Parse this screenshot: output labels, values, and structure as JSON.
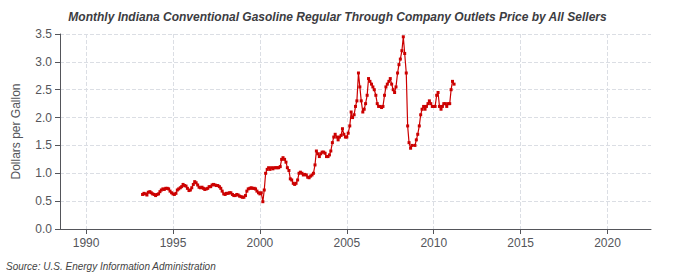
{
  "chart_data": {
    "type": "line",
    "title": "Monthly Indiana Conventional Gasoline Regular Through Company Outlets Price by All Sellers",
    "ylabel": "Dollars per Gallon",
    "source": "Source: U.S. Energy Information Administration",
    "color": "#cc0000",
    "marker": "square",
    "grid": true,
    "xlim": [
      1988.5,
      2022.5
    ],
    "xticks": [
      1990,
      1995,
      2000,
      2005,
      2010,
      2015,
      2020
    ],
    "ylim": [
      0,
      3.5
    ],
    "yticks": [
      {
        "value": 0,
        "label": "0.0"
      },
      0.5,
      {
        "value": 1,
        "label": "1.0"
      },
      1.5,
      {
        "value": 2,
        "label": "2.0"
      },
      2.5,
      {
        "value": 3,
        "label": "3.0"
      },
      3.5
    ],
    "x": [
      1993.25,
      1993.33,
      1993.42,
      1993.5,
      1993.58,
      1993.67,
      1993.75,
      1993.83,
      1993.92,
      1994.0,
      1994.08,
      1994.17,
      1994.25,
      1994.33,
      1994.42,
      1994.5,
      1994.58,
      1994.67,
      1994.75,
      1994.83,
      1994.92,
      1995.0,
      1995.08,
      1995.17,
      1995.25,
      1995.33,
      1995.42,
      1995.5,
      1995.58,
      1995.67,
      1995.75,
      1995.83,
      1995.92,
      1996.0,
      1996.08,
      1996.17,
      1996.25,
      1996.33,
      1996.42,
      1996.5,
      1996.58,
      1996.67,
      1996.75,
      1996.83,
      1996.92,
      1997.0,
      1997.08,
      1997.17,
      1997.25,
      1997.33,
      1997.42,
      1997.5,
      1997.58,
      1997.67,
      1997.75,
      1997.83,
      1997.92,
      1998.0,
      1998.08,
      1998.17,
      1998.25,
      1998.33,
      1998.42,
      1998.5,
      1998.58,
      1998.67,
      1998.75,
      1998.83,
      1998.92,
      1999.0,
      1999.08,
      1999.17,
      1999.25,
      1999.33,
      1999.42,
      1999.5,
      1999.58,
      1999.67,
      1999.75,
      1999.83,
      1999.92,
      2000.0,
      2000.08,
      2000.17,
      2000.25,
      2000.33,
      2000.42,
      2000.5,
      2000.58,
      2000.67,
      2000.75,
      2000.83,
      2000.92,
      2001.0,
      2001.08,
      2001.17,
      2001.25,
      2001.33,
      2001.42,
      2001.5,
      2001.58,
      2001.67,
      2001.75,
      2001.83,
      2001.92,
      2002.0,
      2002.08,
      2002.17,
      2002.25,
      2002.33,
      2002.42,
      2002.5,
      2002.58,
      2002.67,
      2002.75,
      2002.83,
      2002.92,
      2003.0,
      2003.08,
      2003.17,
      2003.25,
      2003.33,
      2003.42,
      2003.5,
      2003.58,
      2003.67,
      2003.75,
      2003.83,
      2003.92,
      2004.0,
      2004.08,
      2004.17,
      2004.25,
      2004.33,
      2004.42,
      2004.5,
      2004.58,
      2004.67,
      2004.75,
      2004.83,
      2004.92,
      2005.0,
      2005.08,
      2005.17,
      2005.25,
      2005.33,
      2005.42,
      2005.5,
      2005.58,
      2005.67,
      2005.75,
      2005.83,
      2005.92,
      2006.0,
      2006.08,
      2006.17,
      2006.25,
      2006.33,
      2006.42,
      2006.5,
      2006.58,
      2006.67,
      2006.75,
      2006.83,
      2006.92,
      2007.0,
      2007.08,
      2007.17,
      2007.25,
      2007.33,
      2007.42,
      2007.5,
      2007.58,
      2007.67,
      2007.75,
      2007.83,
      2007.92,
      2008.0,
      2008.08,
      2008.17,
      2008.25,
      2008.33,
      2008.42,
      2008.5,
      2008.58,
      2008.67,
      2008.75,
      2008.92,
      2009.0,
      2009.08,
      2009.17,
      2009.25,
      2009.33,
      2009.42,
      2009.5,
      2009.58,
      2009.67,
      2009.75,
      2009.83,
      2009.92,
      2010.0,
      2010.08,
      2010.17,
      2010.25,
      2010.33,
      2010.42,
      2010.5,
      2010.58,
      2010.67,
      2010.75,
      2010.83,
      2010.92,
      2011.0,
      2011.08,
      2011.17
    ],
    "values": [
      0.62,
      0.64,
      0.63,
      0.61,
      0.66,
      0.67,
      0.65,
      0.63,
      0.62,
      0.6,
      0.62,
      0.63,
      0.67,
      0.7,
      0.72,
      0.71,
      0.73,
      0.73,
      0.72,
      0.68,
      0.65,
      0.63,
      0.62,
      0.64,
      0.7,
      0.72,
      0.74,
      0.76,
      0.8,
      0.78,
      0.77,
      0.73,
      0.69,
      0.7,
      0.74,
      0.8,
      0.85,
      0.83,
      0.79,
      0.75,
      0.74,
      0.75,
      0.73,
      0.71,
      0.72,
      0.73,
      0.76,
      0.76,
      0.79,
      0.8,
      0.79,
      0.78,
      0.78,
      0.76,
      0.73,
      0.68,
      0.63,
      0.62,
      0.64,
      0.64,
      0.65,
      0.65,
      0.62,
      0.6,
      0.6,
      0.62,
      0.61,
      0.59,
      0.58,
      0.57,
      0.57,
      0.6,
      0.68,
      0.72,
      0.73,
      0.74,
      0.73,
      0.73,
      0.72,
      0.68,
      0.65,
      0.63,
      0.65,
      0.49,
      0.7,
      1.0,
      1.07,
      1.1,
      1.07,
      1.1,
      1.08,
      1.1,
      1.1,
      1.1,
      1.1,
      1.12,
      1.25,
      1.28,
      1.25,
      1.2,
      1.1,
      1.05,
      0.9,
      0.88,
      0.82,
      0.8,
      0.82,
      0.88,
      1.0,
      1.02,
      1.0,
      0.97,
      0.98,
      0.97,
      0.93,
      0.92,
      0.95,
      0.97,
      1.0,
      1.15,
      1.4,
      1.35,
      1.3,
      1.35,
      1.38,
      1.38,
      1.36,
      1.3,
      1.3,
      1.33,
      1.4,
      1.55,
      1.65,
      1.7,
      1.65,
      1.6,
      1.65,
      1.68,
      1.8,
      1.7,
      1.65,
      1.65,
      1.72,
      1.85,
      2.1,
      2.0,
      2.05,
      2.2,
      2.3,
      2.8,
      2.55,
      2.3,
      2.1,
      2.15,
      2.25,
      2.4,
      2.7,
      2.65,
      2.6,
      2.55,
      2.5,
      2.4,
      2.25,
      2.2,
      2.2,
      2.18,
      2.2,
      2.4,
      2.55,
      2.6,
      2.65,
      2.7,
      2.6,
      2.5,
      2.45,
      2.55,
      2.8,
      2.95,
      3.05,
      3.2,
      3.45,
      3.15,
      2.8,
      1.85,
      1.55,
      1.45,
      1.5,
      1.5,
      1.6,
      1.7,
      1.85,
      2.05,
      2.15,
      2.2,
      2.15,
      2.2,
      2.25,
      2.3,
      2.25,
      2.2,
      2.2,
      2.2,
      2.4,
      2.45,
      2.2,
      2.15,
      2.2,
      2.25,
      2.25,
      2.2,
      2.25,
      2.25,
      2.5,
      2.65,
      2.6
    ]
  }
}
